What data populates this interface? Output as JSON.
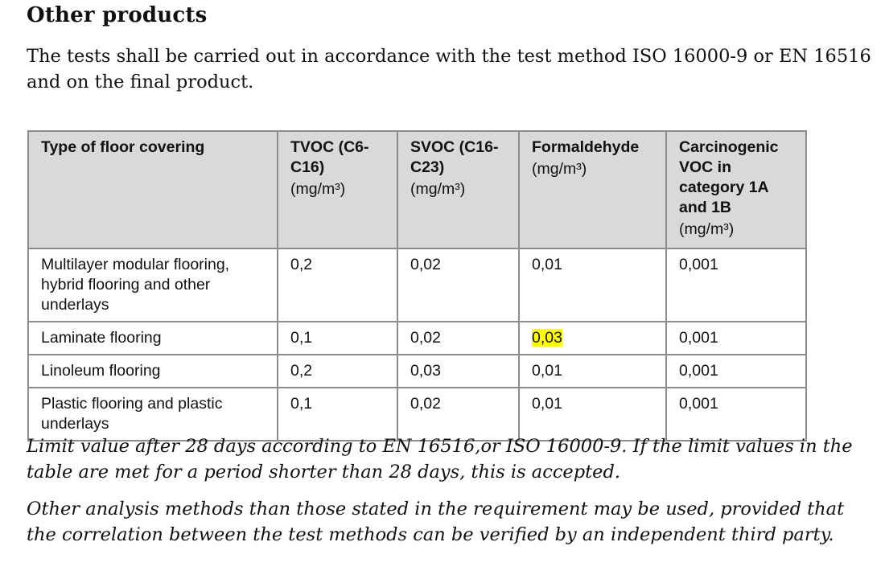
{
  "section": {
    "title": "Other products",
    "intro": "The tests shall be carried out in accordance with the test method ISO 16000-9 or EN 16516 and on the final product."
  },
  "table": {
    "headers": [
      {
        "label": "Type of floor covering",
        "unit": ""
      },
      {
        "label": "TVOC (C6-C16)",
        "unit": "(mg/m³)"
      },
      {
        "label": "SVOC (C16-C23)",
        "unit": "(mg/m³)"
      },
      {
        "label": "Formaldehyde",
        "unit": "(mg/m³)"
      },
      {
        "label": "Carcinogenic VOC in category 1A and 1B",
        "unit": "(mg/m³)"
      }
    ],
    "rows": [
      [
        "Multilayer modular flooring, hybrid flooring and other underlays",
        "0,2",
        "0,02",
        "0,01",
        "0,001"
      ],
      [
        "Laminate flooring",
        "0,1",
        "0,02",
        "0,03",
        "0,001"
      ],
      [
        "Linoleum flooring",
        "0,2",
        "0,03",
        "0,01",
        "0,001"
      ],
      [
        "Plastic flooring and plastic underlays",
        "0,1",
        "0,02",
        "0,01",
        "0,001"
      ]
    ],
    "highlight_color": "#ffff00"
  },
  "notes": {
    "limit": "Limit value after 28 days according to EN 16516,or ISO 16000-9. If the limit values in the table are met for a period shorter than 28 days, this is accepted.",
    "methods": "Other analysis methods than those stated in the requirement may be used, provided that the correlation between the test methods can be verified by an independent third party."
  }
}
